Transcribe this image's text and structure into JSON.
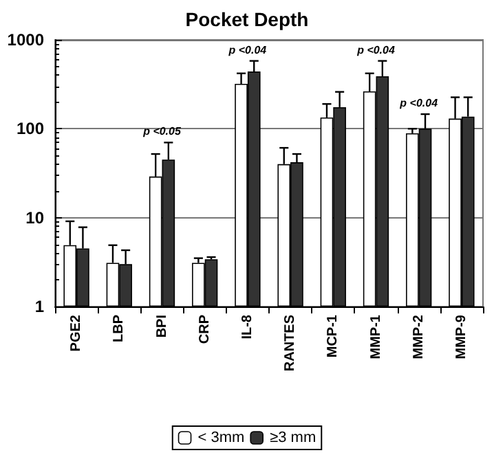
{
  "chart_data": {
    "type": "bar",
    "title": "Pocket Depth",
    "categories": [
      "PGE2",
      "LBP",
      "BPI",
      "CRP",
      "IL-8",
      "RANTES",
      "MCP-1",
      "MMP-1",
      "MMP-2",
      "MMP-9"
    ],
    "series": [
      {
        "name": "< 3mm",
        "color": "#ffffff",
        "values": [
          4.9,
          3.1,
          29,
          3.1,
          320,
          40,
          134,
          263,
          89,
          130
        ],
        "errors": [
          [
            4.9,
            9.1
          ],
          [
            3.1,
            4.9
          ],
          [
            29,
            52
          ],
          [
            3.1,
            3.5
          ],
          [
            320,
            420
          ],
          [
            40,
            61
          ],
          [
            134,
            190
          ],
          [
            263,
            420
          ],
          [
            89,
            100
          ],
          [
            130,
            226
          ]
        ]
      },
      {
        "name": "≥3 mm",
        "color": "#333333",
        "values": [
          4.5,
          3.0,
          45,
          3.4,
          440,
          42,
          175,
          390,
          100,
          137
        ],
        "errors": [
          [
            4.5,
            7.8
          ],
          [
            3.0,
            4.3
          ],
          [
            45,
            70
          ],
          [
            3.4,
            3.6
          ],
          [
            440,
            580
          ],
          [
            42,
            52
          ],
          [
            175,
            260
          ],
          [
            390,
            580
          ],
          [
            100,
            146
          ],
          [
            137,
            226
          ]
        ]
      }
    ],
    "log": "y",
    "ylim": [
      1,
      1000
    ],
    "yticks": [
      1,
      10,
      100,
      1000
    ],
    "grid": "y",
    "legend": "bottom",
    "annotations": [
      "p <0.05",
      "p <0.04",
      "p <0.04",
      "p <0.04"
    ]
  }
}
